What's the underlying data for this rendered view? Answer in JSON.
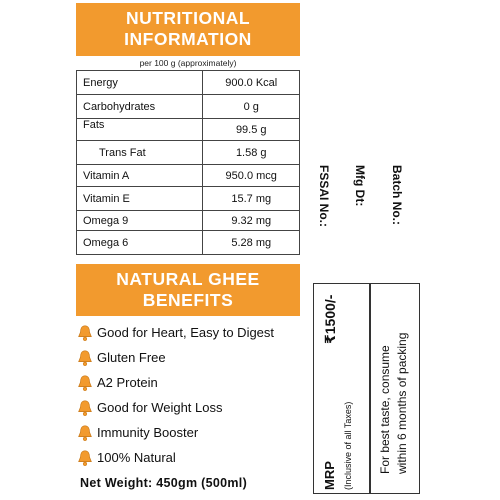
{
  "nutrition": {
    "title_line1": "NUTRITIONAL",
    "title_line2": "INFORMATION",
    "per_note": "per 100 g (approximately)",
    "rows": [
      {
        "name": "Energy",
        "value": "900.0 Kcal"
      },
      {
        "name": "Carbohydrates",
        "value": "0 g"
      },
      {
        "name": "Fats",
        "value": "99.5 g"
      },
      {
        "name": "Trans Fat",
        "value": "1.58 g"
      },
      {
        "name": "Vitamin A",
        "value": "950.0 mcg"
      },
      {
        "name": "Vitamin E",
        "value": "15.7 mg"
      },
      {
        "name": "Omega 9",
        "value": "9.32 mg"
      },
      {
        "name": "Omega 6",
        "value": "5.28 mg"
      }
    ]
  },
  "benefits": {
    "title_line1": "NATURAL GHEE",
    "title_line2": "BENEFITS",
    "items": [
      "Good for Heart, Easy to Digest",
      "Gluten Free",
      "A2 Protein",
      "Good for Weight Loss",
      "Immunity Booster",
      "100% Natural"
    ],
    "icon": "bell-icon",
    "icon_color": "#f29a2e"
  },
  "net_weight": "Net Weight:  450gm (500ml)",
  "side_labels": {
    "fssai": "FSSAI No.:",
    "mfg": "Mfg Dt:",
    "batch": "Batch No.:"
  },
  "price": {
    "mrp_label": "MRP",
    "inclusive": "(Inclusive of all Taxes)",
    "amount": "₹1500/-"
  },
  "best_before": {
    "line1": "For best taste, consume",
    "line2": "within 6 months of packing"
  },
  "colors": {
    "accent": "#f29a2e"
  }
}
